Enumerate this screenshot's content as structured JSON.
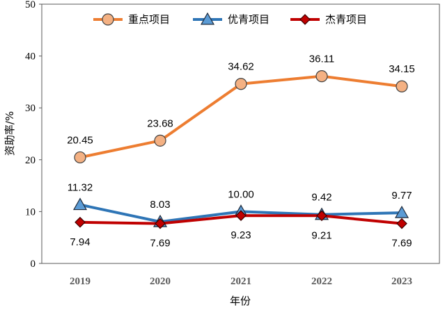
{
  "chart_data": {
    "type": "line",
    "title": "",
    "xlabel": "年份",
    "ylabel": "资助率/%",
    "categories": [
      "2019",
      "2020",
      "2021",
      "2022",
      "2023"
    ],
    "ylim": [
      0,
      50
    ],
    "yticks": [
      "0",
      "10",
      "20",
      "30",
      "40",
      "50"
    ],
    "grid": false,
    "legend_position": "top",
    "series": [
      {
        "name": "重点项目",
        "values": [
          20.45,
          23.68,
          34.62,
          36.11,
          34.15
        ],
        "labels": [
          "20.45",
          "23.68",
          "34.62",
          "36.11",
          "34.15"
        ],
        "label_position": "above",
        "color": "#ED7D31",
        "marker": "circle",
        "marker_fill": "#F4B183",
        "marker_stroke": "#404040"
      },
      {
        "name": "优青项目",
        "values": [
          11.32,
          8.03,
          10.0,
          9.42,
          9.77
        ],
        "labels": [
          "11.32",
          "8.03",
          "10.00",
          "9.42",
          "9.77"
        ],
        "label_position": "above",
        "color": "#2E75B6",
        "marker": "triangle",
        "marker_fill": "#5B9BD5",
        "marker_stroke": "#1F2A3A"
      },
      {
        "name": "杰青项目",
        "values": [
          7.94,
          7.69,
          9.23,
          9.21,
          7.69
        ],
        "labels": [
          "7.94",
          "7.69",
          "9.23",
          "9.21",
          "7.69"
        ],
        "label_position": "below",
        "color": "#C00000",
        "marker": "diamond",
        "marker_fill": "#C00000",
        "marker_stroke": "#3A0000"
      }
    ]
  }
}
